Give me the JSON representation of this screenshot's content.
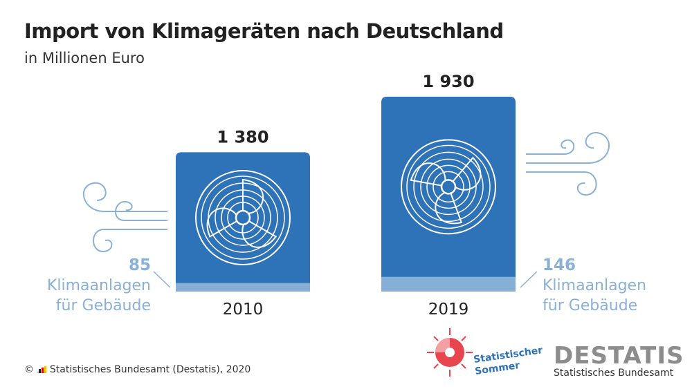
{
  "chart_data": {
    "type": "bar",
    "title": "Import von Klimageräten nach Deutschland",
    "subtitle": "in Millionen Euro",
    "categories": [
      "2010",
      "2019"
    ],
    "values": [
      1380,
      1930
    ],
    "value_labels": [
      "1 380",
      "1 930"
    ],
    "sub_segment": {
      "label": "Klimaanlagen für Gebäude",
      "label_line1": "Klimaanlagen",
      "label_line2": "für Gebäude",
      "values": [
        85,
        146
      ]
    },
    "colors": {
      "bar": "#2e72b8",
      "segment": "#86afd6",
      "annotation": "#8ab0d6"
    },
    "ylim": [
      0,
      1930
    ],
    "grid": false
  },
  "footer": {
    "copyright": "©",
    "source": "Statistisches Bundesamt (Destatis), 2020"
  },
  "logos": {
    "statistischer_sommer": [
      "Statistischer",
      "Sommer"
    ],
    "destatis": {
      "wordmark": "DESTATIS",
      "tagline": "Statistisches Bundesamt"
    }
  }
}
